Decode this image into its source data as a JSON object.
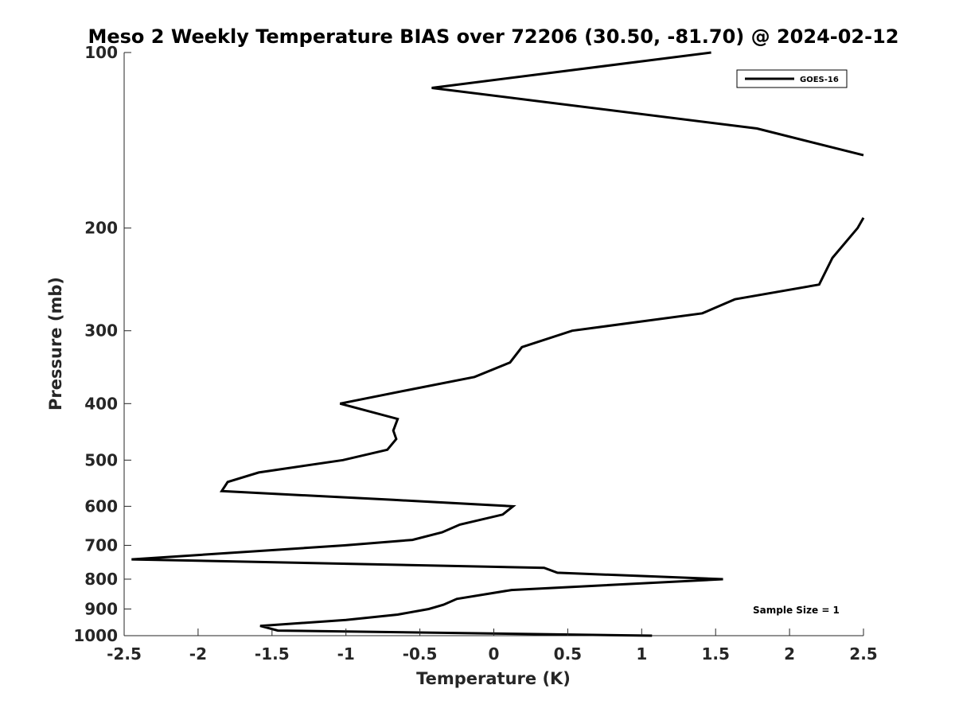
{
  "chart_data": {
    "type": "line",
    "title": "Meso 2 Weekly Temperature BIAS over 72206 (30.50, -81.70) @ 2024-02-12",
    "xlabel": "Temperature (K)",
    "ylabel": "Pressure (mb)",
    "xlim": [
      -2.5,
      2.5
    ],
    "ylim": [
      100,
      1000
    ],
    "y_scale": "log",
    "y_reversed": true,
    "x_ticks": [
      -2.5,
      -2,
      -1.5,
      -1,
      -0.5,
      0,
      0.5,
      1,
      1.5,
      2,
      2.5
    ],
    "x_tick_labels": [
      "-2.5",
      "-2",
      "-1.5",
      "-1",
      "-0.5",
      "0",
      "0.5",
      "1",
      "1.5",
      "2",
      "2.5"
    ],
    "y_ticks": [
      100,
      200,
      300,
      400,
      500,
      600,
      700,
      800,
      900,
      1000
    ],
    "y_tick_labels": [
      "100",
      "200",
      "300",
      "400",
      "500",
      "600",
      "700",
      "800",
      "900",
      "1000"
    ],
    "grid": false,
    "legend_position": "top-right",
    "annotation": "Sample Size = 1",
    "line_color": "#000000",
    "series": [
      {
        "name": "GOES-16",
        "segments": [
          [
            {
              "x": 1.47,
              "y": 100
            },
            {
              "x": -0.42,
              "y": 115
            },
            {
              "x": 1.78,
              "y": 135
            },
            {
              "x": 2.5,
              "y": 150
            }
          ],
          [
            {
              "x": 2.5,
              "y": 192
            },
            {
              "x": 2.46,
              "y": 200
            },
            {
              "x": 2.29,
              "y": 225
            },
            {
              "x": 2.2,
              "y": 250
            },
            {
              "x": 1.63,
              "y": 265
            },
            {
              "x": 1.41,
              "y": 280
            },
            {
              "x": 0.53,
              "y": 300
            },
            {
              "x": 0.19,
              "y": 320
            },
            {
              "x": 0.11,
              "y": 340
            },
            {
              "x": -0.13,
              "y": 360
            },
            {
              "x": -0.6,
              "y": 380
            },
            {
              "x": -1.04,
              "y": 400
            },
            {
              "x": -0.65,
              "y": 425
            },
            {
              "x": -0.68,
              "y": 445
            },
            {
              "x": -0.66,
              "y": 460
            },
            {
              "x": -0.72,
              "y": 480
            },
            {
              "x": -1.02,
              "y": 500
            },
            {
              "x": -1.59,
              "y": 525
            },
            {
              "x": -1.8,
              "y": 545
            },
            {
              "x": -1.84,
              "y": 565
            },
            {
              "x": -0.68,
              "y": 585
            },
            {
              "x": 0.13,
              "y": 600
            },
            {
              "x": 0.06,
              "y": 620
            },
            {
              "x": -0.23,
              "y": 645
            },
            {
              "x": -0.35,
              "y": 665
            },
            {
              "x": -0.55,
              "y": 685
            },
            {
              "x": -1.01,
              "y": 700
            },
            {
              "x": -2.45,
              "y": 740
            },
            {
              "x": 0.34,
              "y": 765
            },
            {
              "x": 0.43,
              "y": 780
            },
            {
              "x": 1.55,
              "y": 800
            },
            {
              "x": 0.12,
              "y": 835
            },
            {
              "x": -0.25,
              "y": 865
            },
            {
              "x": -0.34,
              "y": 885
            },
            {
              "x": -0.44,
              "y": 900
            },
            {
              "x": -0.65,
              "y": 920
            },
            {
              "x": -1.0,
              "y": 940
            },
            {
              "x": -1.58,
              "y": 962
            },
            {
              "x": -1.46,
              "y": 980
            },
            {
              "x": 1.07,
              "y": 1000
            }
          ]
        ]
      }
    ]
  }
}
